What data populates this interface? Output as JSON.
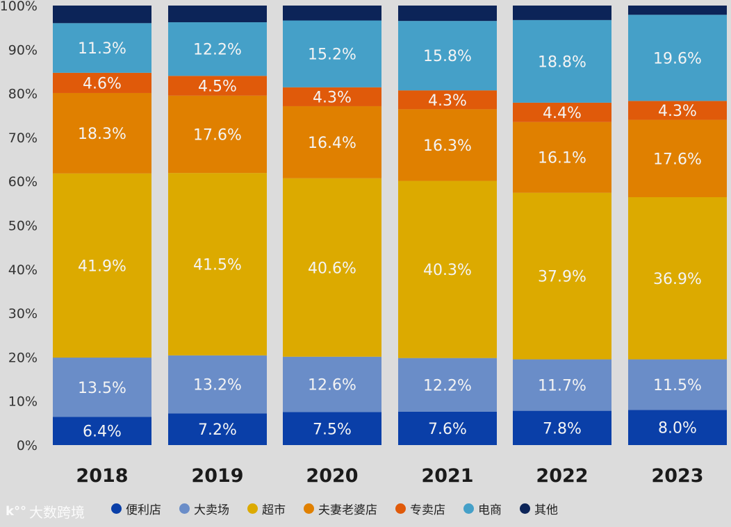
{
  "chart_data": {
    "type": "bar",
    "stacked": true,
    "categories": [
      "2018",
      "2019",
      "2020",
      "2021",
      "2022",
      "2023"
    ],
    "y_ticks": [
      "0%",
      "10%",
      "20%",
      "30%",
      "40%",
      "50%",
      "60%",
      "70%",
      "80%",
      "90%",
      "100%"
    ],
    "ylim": [
      0,
      100
    ],
    "legend_position": "bottom",
    "series": [
      {
        "name": "便利店",
        "color": "#0a3fa8",
        "values": [
          6.4,
          7.2,
          7.5,
          7.6,
          7.8,
          8.0
        ],
        "labels": [
          "6.4%",
          "7.2%",
          "7.5%",
          "7.6%",
          "7.8%",
          "8.0%"
        ]
      },
      {
        "name": "大卖场",
        "color": "#6a8dc8",
        "values": [
          13.5,
          13.2,
          12.6,
          12.2,
          11.7,
          11.5
        ],
        "labels": [
          "13.5%",
          "13.2%",
          "12.6%",
          "12.2%",
          "11.7%",
          "11.5%"
        ]
      },
      {
        "name": "超市",
        "color": "#dcaa00",
        "values": [
          41.9,
          41.5,
          40.6,
          40.3,
          37.9,
          36.9
        ],
        "labels": [
          "41.9%",
          "41.5%",
          "40.6%",
          "40.3%",
          "37.9%",
          "36.9%"
        ]
      },
      {
        "name": "夫妻老婆店",
        "color": "#e08000",
        "values": [
          18.3,
          17.6,
          16.4,
          16.3,
          16.1,
          17.6
        ],
        "labels": [
          "18.3%",
          "17.6%",
          "16.4%",
          "16.3%",
          "16.1%",
          "17.6%"
        ]
      },
      {
        "name": "专卖店",
        "color": "#e05a0a",
        "values": [
          4.6,
          4.5,
          4.3,
          4.3,
          4.4,
          4.3
        ],
        "labels": [
          "4.6%",
          "4.5%",
          "4.3%",
          "4.3%",
          "4.4%",
          "4.3%"
        ]
      },
      {
        "name": "电商",
        "color": "#45a0c8",
        "values": [
          11.3,
          12.2,
          15.2,
          15.8,
          18.8,
          19.6
        ],
        "labels": [
          "11.3%",
          "12.2%",
          "15.2%",
          "15.8%",
          "18.8%",
          "19.6%"
        ]
      },
      {
        "name": "其他",
        "color": "#0c2458",
        "values": [
          4.0,
          3.8,
          3.4,
          3.5,
          3.3,
          2.1
        ],
        "labels": []
      }
    ]
  },
  "watermark": {
    "text": "大数跨境",
    "logo": "k°°"
  }
}
